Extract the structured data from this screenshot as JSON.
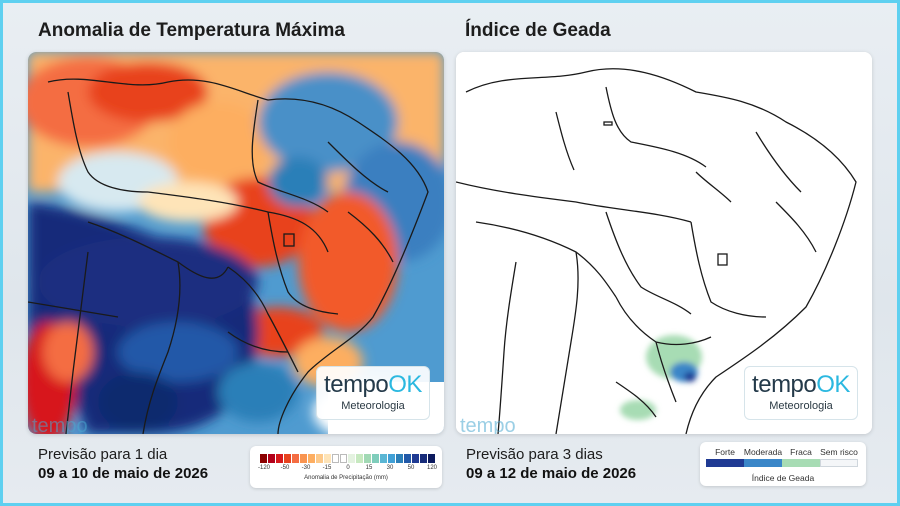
{
  "left": {
    "title": "Anomalia de Temperatura Máxima",
    "forecast_label": "Previsão para 1 dia",
    "forecast_dates": "09 a 10 de maio de 2026",
    "legend": {
      "title": "Anomalia de Precipitação (mm)",
      "ticks": [
        "-120",
        "-50",
        "-30",
        "-15",
        "0",
        "15",
        "30",
        "50",
        "120"
      ],
      "colors": [
        "#8b0000",
        "#b3001a",
        "#d7191c",
        "#e8431f",
        "#f46d43",
        "#f99450",
        "#fdae61",
        "#fdc98a",
        "#fee4b8",
        "#ffffff",
        "#ffffff",
        "#e4f2e0",
        "#c7e9c0",
        "#a1d9b4",
        "#7fcdbb",
        "#5ab6d4",
        "#41a0d6",
        "#2c7fb8",
        "#2159a8",
        "#1f3a93",
        "#172c7a",
        "#0c1a5e"
      ]
    }
  },
  "right": {
    "title": "Índice de Geada",
    "forecast_label": "Previsão para 3 dias",
    "forecast_dates": "09 a 12 de maio de 2026",
    "legend": {
      "title": "Índice de Geada",
      "categories": [
        {
          "label": "Forte",
          "color": "#1f3a93"
        },
        {
          "label": "Moderada",
          "color": "#3a86c8"
        },
        {
          "label": "Fraca",
          "color": "#a7dcb4"
        },
        {
          "label": "Sem risco",
          "color": "#f4f6f8"
        }
      ]
    }
  },
  "brand": {
    "logo_main": "tempo",
    "logo_accent": "OK",
    "subtitle": "Meteorologia"
  },
  "watermark": {
    "main": "tempo",
    "accent": "OK"
  }
}
